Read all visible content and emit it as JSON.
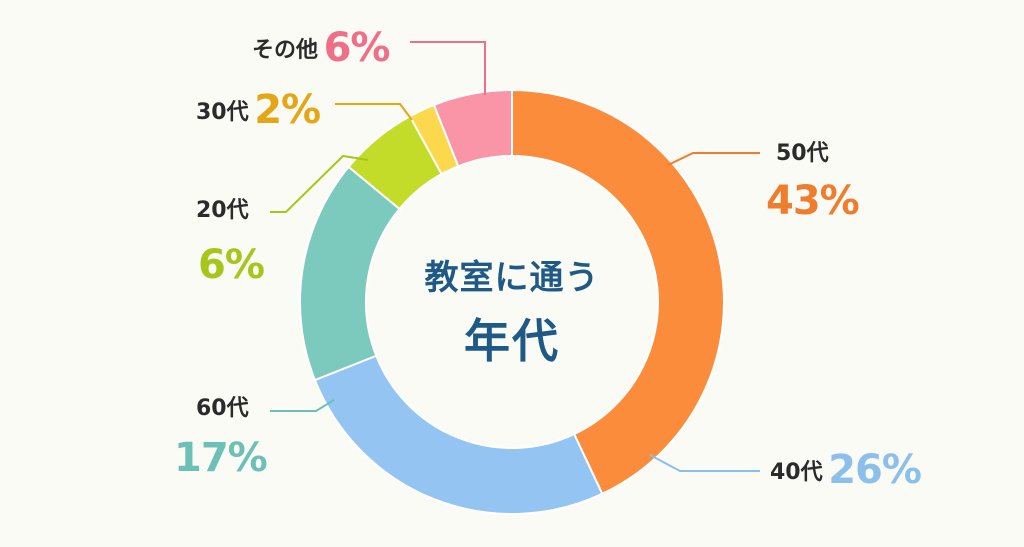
{
  "chart_data": {
    "type": "pie",
    "title": "教室に通う年代",
    "title_lines": [
      "教室に通う",
      "年代"
    ],
    "slices": [
      {
        "label": "50代",
        "value": 43,
        "display": "43%",
        "color": "#fb8c3c"
      },
      {
        "label": "40代",
        "value": 26,
        "display": "26%",
        "color": "#94c4f1"
      },
      {
        "label": "60代",
        "value": 17,
        "display": "17%",
        "color": "#7cc9bd"
      },
      {
        "label": "20代",
        "value": 6,
        "display": "6%",
        "color": "#c3dc2a"
      },
      {
        "label": "30代",
        "value": 2,
        "display": "2%",
        "color": "#fcd84c"
      },
      {
        "label": "その他",
        "value": 6,
        "display": "6%",
        "color": "#f995a6"
      }
    ],
    "label_colors": {
      "50代": "#f07d2e",
      "40代": "#8cbfea",
      "60代": "#6cc0b5",
      "20代": "#a7c51a",
      "30代": "#e5a616",
      "その他": "#f06f88"
    }
  }
}
